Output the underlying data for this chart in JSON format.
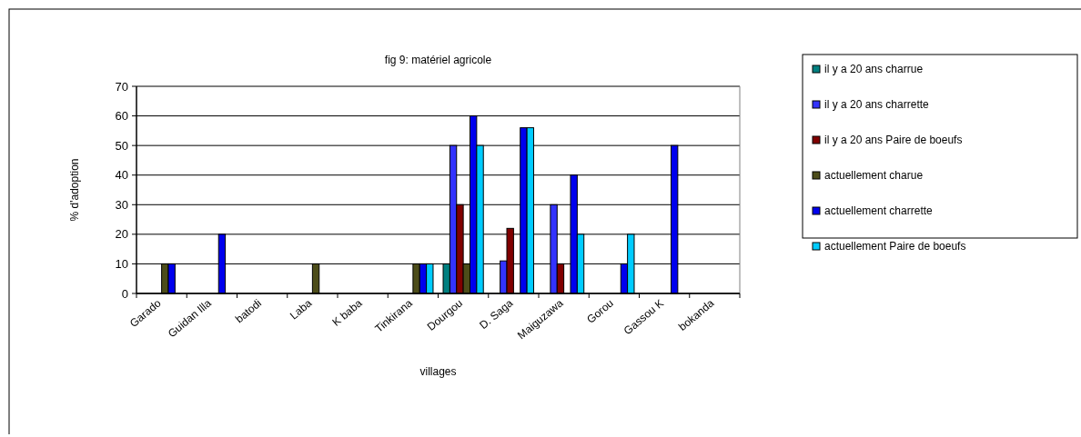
{
  "chart_data": {
    "type": "bar",
    "title": "fig 9: matériel agricole",
    "xlabel": "villages",
    "ylabel": "% d'adoption",
    "categories": [
      "Garado",
      "Guidan Illa",
      "batodi",
      "Laba",
      "K baba",
      "Tinkirana",
      "Dourgou",
      "D. Saga",
      "Maiguzawa",
      "Gorou",
      "Gassou K",
      "bokanda"
    ],
    "series": [
      {
        "name": "il y a 20 ans charrue",
        "color": "#008080",
        "values": [
          null,
          null,
          null,
          null,
          null,
          null,
          10,
          null,
          null,
          null,
          null,
          null
        ]
      },
      {
        "name": "il y a 20 ans charrette",
        "color": "#3333ff",
        "values": [
          null,
          null,
          null,
          null,
          null,
          null,
          50,
          11,
          30,
          null,
          null,
          null
        ]
      },
      {
        "name": "il y a 20 ans Paire de boeufs",
        "color": "#800000",
        "values": [
          null,
          null,
          null,
          null,
          null,
          null,
          30,
          22,
          10,
          null,
          null,
          null
        ]
      },
      {
        "name": "actuellement charue",
        "color": "#4d4d1a",
        "values": [
          10,
          null,
          null,
          10,
          null,
          10,
          10,
          null,
          null,
          null,
          null,
          null
        ]
      },
      {
        "name": "actuellement charrette",
        "color": "#0000ee",
        "values": [
          10,
          20,
          null,
          null,
          null,
          10,
          60,
          56,
          40,
          10,
          50,
          null
        ]
      },
      {
        "name": "actuellement Paire de boeufs",
        "color": "#00ccff",
        "values": [
          null,
          null,
          null,
          null,
          null,
          10,
          50,
          56,
          20,
          20,
          null,
          null
        ]
      }
    ],
    "ylim": [
      0,
      70
    ],
    "yticks": [
      0,
      10,
      20,
      30,
      40,
      50,
      60,
      70
    ],
    "grid": "y",
    "legend": "right"
  }
}
